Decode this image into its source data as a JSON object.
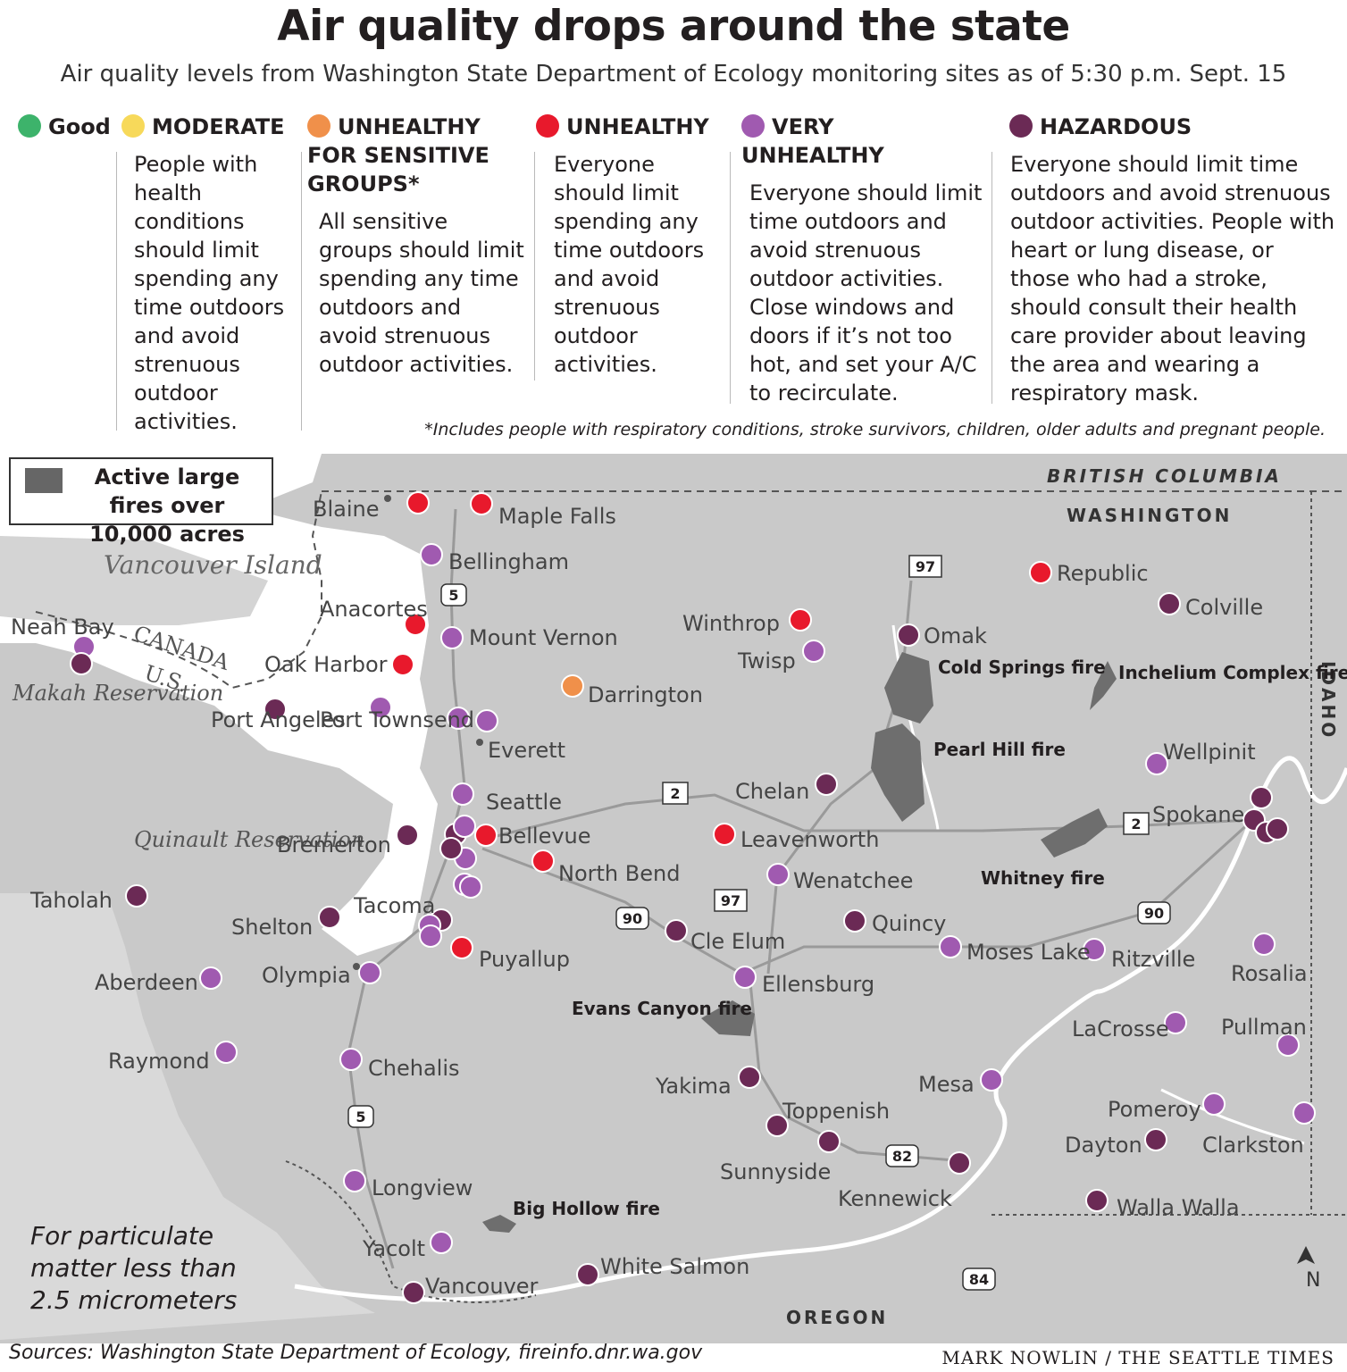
{
  "title": "Air quality drops around the state",
  "subtitle": "Air quality levels from Washington State Department of Ecology monitoring sites as of 5:30 p.m. Sept. 15",
  "legend": {
    "good": {
      "label": "Good",
      "color": "#3db36b"
    },
    "moderate": {
      "label": "MODERATE",
      "color": "#f7d95a",
      "desc": "People with health conditions should limit spending any time outdoors and avoid strenuous outdoor activities."
    },
    "usg": {
      "label": "UNHEALTHY FOR SENSITIVE GROUPS*",
      "color": "#f0904a",
      "desc": "All sensitive groups should limit spending any time outdoors and avoid strenuous outdoor activities."
    },
    "unhealthy": {
      "label": "UNHEALTHY",
      "color": "#e8192c",
      "desc": "Everyone should limit spending any time outdoors and avoid strenuous outdoor activities."
    },
    "very_unhealthy": {
      "label": "VERY UNHEALTHY",
      "color": "#a05ab0",
      "desc": "Everyone should limit time outdoors and avoid strenuous outdoor activities. Close windows and doors if it’s not too hot, and set your A/C to recirculate."
    },
    "hazardous": {
      "label": "HAZARDOUS",
      "color": "#6b2a55",
      "desc": "Everyone should limit time outdoors and avoid strenuous outdoor activities. People with heart or lung disease, or those who had a stroke, should consult their health care provider about leaving the area and wearing a respiratory mask."
    }
  },
  "footnote": "*Includes people with respiratory conditions, stroke survivors, children, older adults and pregnant people.",
  "fire_legend": "Active large fires over 10,000 acres",
  "particulate_note": "For particulate matter less than 2.5 micrometers",
  "sources": "Sources: Washington State Department of Ecology, fireinfo.dnr.wa.gov",
  "credit": "MARK NOWLIN / THE SEATTLE TIMES",
  "map": {
    "regions": {
      "bc": "BRITISH COLUMBIA",
      "washington": "WASHINGTON",
      "idaho": "IDAHO",
      "oregon": "OREGON",
      "canada": "CANADA",
      "us": "U.S.",
      "vancouver_island": "Vancouver Island",
      "north": "N"
    },
    "reservations": {
      "makah": "Makah Reservation",
      "quinault": "Quinault Reservation"
    },
    "fires": {
      "cold_springs": "Cold Springs fire",
      "pearl_hill": "Pearl Hill fire",
      "inchelium": "Inchelium Complex fire",
      "whitney": "Whitney fire",
      "evans_canyon": "Evans Canyon fire",
      "big_hollow": "Big Hollow fire"
    },
    "highways": [
      "5",
      "97",
      "2",
      "90",
      "82",
      "84"
    ],
    "stations": [
      {
        "name": "Blaine",
        "level": "unhealthy"
      },
      {
        "name": "Maple Falls",
        "level": "unhealthy"
      },
      {
        "name": "Bellingham",
        "level": "very_unhealthy"
      },
      {
        "name": "Anacortes",
        "level": "unhealthy"
      },
      {
        "name": "Mount Vernon",
        "level": "very_unhealthy"
      },
      {
        "name": "Oak Harbor",
        "level": "unhealthy"
      },
      {
        "name": "Neah Bay",
        "level": "very_unhealthy"
      },
      {
        "name": "Neah Bay",
        "level": "hazardous"
      },
      {
        "name": "Port Angeles",
        "level": "hazardous"
      },
      {
        "name": "Port Townsend",
        "level": "very_unhealthy"
      },
      {
        "name": "Everett",
        "level": "very_unhealthy"
      },
      {
        "name": "Everett",
        "level": "very_unhealthy"
      },
      {
        "name": "Darrington",
        "level": "usg"
      },
      {
        "name": "Winthrop",
        "level": "unhealthy"
      },
      {
        "name": "Twisp",
        "level": "very_unhealthy"
      },
      {
        "name": "Omak",
        "level": "hazardous"
      },
      {
        "name": "Republic",
        "level": "unhealthy"
      },
      {
        "name": "Colville",
        "level": "hazardous"
      },
      {
        "name": "Wellpinit",
        "level": "very_unhealthy"
      },
      {
        "name": "Spokane",
        "level": "hazardous"
      },
      {
        "name": "Chelan",
        "level": "hazardous"
      },
      {
        "name": "Leavenworth",
        "level": "unhealthy"
      },
      {
        "name": "Wenatchee",
        "level": "very_unhealthy"
      },
      {
        "name": "Seattle",
        "level": "very_unhealthy"
      },
      {
        "name": "Seattle",
        "level": "hazardous"
      },
      {
        "name": "Bellevue",
        "level": "unhealthy"
      },
      {
        "name": "North Bend",
        "level": "unhealthy"
      },
      {
        "name": "Bremerton",
        "level": "hazardous"
      },
      {
        "name": "Taholah",
        "level": "hazardous"
      },
      {
        "name": "Shelton",
        "level": "hazardous"
      },
      {
        "name": "Tacoma",
        "level": "very_unhealthy"
      },
      {
        "name": "Tacoma",
        "level": "hazardous"
      },
      {
        "name": "Puyallup",
        "level": "unhealthy"
      },
      {
        "name": "Olympia",
        "level": "very_unhealthy"
      },
      {
        "name": "Aberdeen",
        "level": "very_unhealthy"
      },
      {
        "name": "Raymond",
        "level": "very_unhealthy"
      },
      {
        "name": "Chehalis",
        "level": "very_unhealthy"
      },
      {
        "name": "Longview",
        "level": "very_unhealthy"
      },
      {
        "name": "Yacolt",
        "level": "very_unhealthy"
      },
      {
        "name": "Vancouver",
        "level": "hazardous"
      },
      {
        "name": "White Salmon",
        "level": "hazardous"
      },
      {
        "name": "Cle Elum",
        "level": "hazardous"
      },
      {
        "name": "Ellensburg",
        "level": "very_unhealthy"
      },
      {
        "name": "Quincy",
        "level": "hazardous"
      },
      {
        "name": "Moses Lake",
        "level": "very_unhealthy"
      },
      {
        "name": "Ritzville",
        "level": "very_unhealthy"
      },
      {
        "name": "Rosalia",
        "level": "very_unhealthy"
      },
      {
        "name": "LaCrosse",
        "level": "very_unhealthy"
      },
      {
        "name": "Pullman",
        "level": "very_unhealthy"
      },
      {
        "name": "Yakima",
        "level": "hazardous"
      },
      {
        "name": "Toppenish",
        "level": "hazardous"
      },
      {
        "name": "Sunnyside",
        "level": "hazardous"
      },
      {
        "name": "Mesa",
        "level": "very_unhealthy"
      },
      {
        "name": "Kennewick",
        "level": "hazardous"
      },
      {
        "name": "Pomeroy",
        "level": "very_unhealthy"
      },
      {
        "name": "Dayton",
        "level": "hazardous"
      },
      {
        "name": "Clarkston",
        "level": "very_unhealthy"
      },
      {
        "name": "Walla Walla",
        "level": "hazardous"
      }
    ]
  }
}
